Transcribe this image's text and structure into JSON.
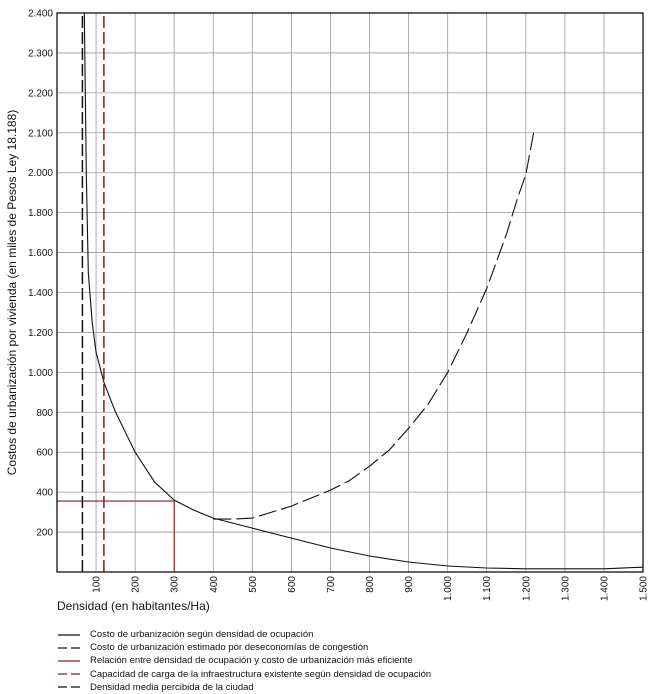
{
  "chart_data": {
    "type": "line",
    "xlabel": "Densidad (en habitantes/Ha)",
    "ylabel": "Costos de urbanización por vivienda (en miles de Pesos Ley 18.188)",
    "xlim": [
      0,
      1500
    ],
    "ylim": [
      100,
      2400
    ],
    "grid": true,
    "x_ticks": [
      {
        "value": 100,
        "label": "100"
      },
      {
        "value": 200,
        "label": "200"
      },
      {
        "value": 300,
        "label": "300"
      },
      {
        "value": 400,
        "label": "400"
      },
      {
        "value": 500,
        "label": "500"
      },
      {
        "value": 600,
        "label": "600"
      },
      {
        "value": 700,
        "label": "700"
      },
      {
        "value": 800,
        "label": "800"
      },
      {
        "value": 900,
        "label": "900"
      },
      {
        "value": 1000,
        "label": "1.000"
      },
      {
        "value": 1100,
        "label": "1.100"
      },
      {
        "value": 1200,
        "label": "1.200"
      },
      {
        "value": 1300,
        "label": "1.300"
      },
      {
        "value": 1400,
        "label": "1.400"
      },
      {
        "value": 1500,
        "label": "1.500"
      }
    ],
    "y_ticks": [
      {
        "value": 200,
        "label": "200"
      },
      {
        "value": 400,
        "label": "400"
      },
      {
        "value": 600,
        "label": "600"
      },
      {
        "value": 800,
        "label": "800"
      },
      {
        "value": 1000,
        "label": "1.000"
      },
      {
        "value": 1200,
        "label": "1.200"
      },
      {
        "value": 1400,
        "label": "1.400"
      },
      {
        "value": 1600,
        "label": "1.600"
      },
      {
        "value": 1800,
        "label": "1.800"
      },
      {
        "value": 2000,
        "label": "2.000"
      },
      {
        "value": 2100,
        "label": "2.100"
      },
      {
        "value": 2200,
        "label": "2.200"
      },
      {
        "value": 2300,
        "label": "2.300"
      },
      {
        "value": 2400,
        "label": "2.400"
      }
    ],
    "series": [
      {
        "name": "Costo de urbanización según densidad de ocupación",
        "style": "solid",
        "color": "#111111",
        "x": [
          70,
          75,
          80,
          90,
          100,
          120,
          150,
          200,
          250,
          300,
          350,
          400,
          500,
          600,
          700,
          800,
          900,
          1000,
          1100,
          1200,
          1300,
          1400,
          1500
        ],
        "y": [
          2400,
          2000,
          1500,
          1250,
          1100,
          950,
          800,
          600,
          450,
          360,
          310,
          270,
          220,
          185,
          160,
          140,
          125,
          115,
          110,
          108,
          108,
          108,
          112
        ]
      },
      {
        "name": "Costo de urbanización estimado por deseconomías de congestión",
        "style": "dashed",
        "color": "#111111",
        "x": [
          400,
          450,
          500,
          550,
          600,
          650,
          700,
          750,
          800,
          850,
          900,
          950,
          1000,
          1050,
          1100,
          1150,
          1180,
          1200,
          1220
        ],
        "y": [
          265,
          265,
          270,
          300,
          330,
          370,
          410,
          460,
          530,
          610,
          720,
          840,
          1000,
          1200,
          1420,
          1690,
          1880,
          1990,
          2100
        ]
      },
      {
        "name": "Relación entre densidad de ocupación y costo de urbanización más eficiente",
        "style": "solid",
        "color": "#8b1a1a",
        "x": [
          0,
          300,
          300
        ],
        "y": [
          355,
          355,
          100
        ]
      },
      {
        "name": "Capacidad de carga de la infraestructura existente según densidad de ocupación",
        "style": "dashed",
        "color": "#8b1a1a",
        "x": [
          120,
          120
        ],
        "y": [
          100,
          2400
        ]
      },
      {
        "name": "Densidad media percibida de la ciudad",
        "style": "dashed",
        "color": "#111111",
        "x": [
          65,
          65
        ],
        "y": [
          100,
          2400
        ]
      }
    ]
  }
}
